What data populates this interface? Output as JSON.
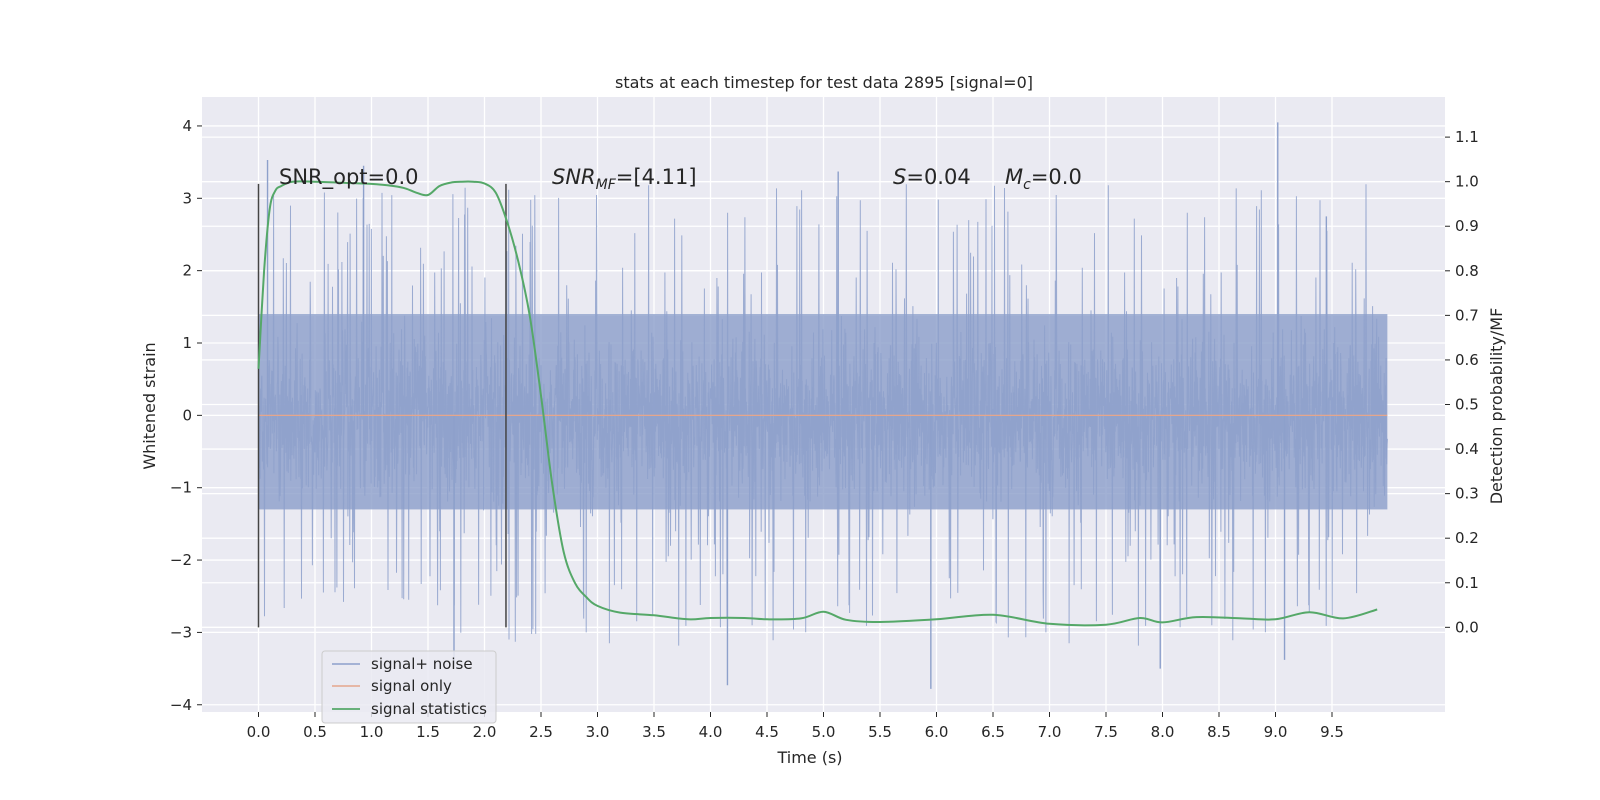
{
  "chart_data": {
    "type": "line",
    "title": "stats at each timestep for test data 2895 [signal=0]",
    "xlabel": "Time (s)",
    "ylabel": "Whitened strain",
    "y2label": "Detection probability/MF",
    "xlim": [
      -0.5,
      10.5
    ],
    "ylim": [
      -4.1,
      4.4
    ],
    "y2lim": [
      -0.19,
      1.19
    ],
    "x_ticks": [
      "0.0",
      "0.5",
      "1.0",
      "1.5",
      "2.0",
      "2.5",
      "3.0",
      "3.5",
      "4.0",
      "4.5",
      "5.0",
      "5.5",
      "6.0",
      "6.5",
      "7.0",
      "7.5",
      "8.0",
      "8.5",
      "9.0",
      "9.5"
    ],
    "y_ticks": [
      "4",
      "3",
      "2",
      "1",
      "0",
      "−1",
      "−2",
      "−3",
      "−4"
    ],
    "y_tick_values": [
      4,
      3,
      2,
      1,
      0,
      -1,
      -2,
      -3,
      -4
    ],
    "y2_ticks": [
      "1.1",
      "1.0",
      "0.9",
      "0.8",
      "0.7",
      "0.6",
      "0.5",
      "0.4",
      "0.3",
      "0.2",
      "0.1",
      "0.0"
    ],
    "y2_tick_values": [
      1.1,
      1.0,
      0.9,
      0.8,
      0.7,
      0.6,
      0.5,
      0.4,
      0.3,
      0.2,
      0.1,
      0.0
    ],
    "grid": true,
    "legend_position": "lower-left",
    "annotations": {
      "snr_opt": "SNR_opt=0.0",
      "snr_mf_prefix": "SNR",
      "snr_mf_sub": "MF",
      "snr_mf_value": "=[4.11]",
      "s_label": "S",
      "s_value": "=0.04",
      "mc_label": "M",
      "mc_sub": "c",
      "mc_value": "=0.0"
    },
    "vertical_lines_x": [
      0.0,
      2.19
    ],
    "series": [
      {
        "name": "signal+ noise",
        "color": "#8da0cb",
        "x_range": [
          0.0,
          9.99
        ],
        "envelope_upper": 1.4,
        "envelope_lower": -1.3,
        "spike_max": 4.05,
        "spike_min": -3.8,
        "notable_peaks": [
          {
            "x": 0.08,
            "y": 3.53
          },
          {
            "x": 0.93,
            "y": 3.45
          },
          {
            "x": 5.13,
            "y": 3.37
          },
          {
            "x": 9.02,
            "y": 4.05
          },
          {
            "x": 9.45,
            "y": 2.75
          }
        ],
        "notable_troughs": [
          {
            "x": 1.73,
            "y": -3.43
          },
          {
            "x": 4.15,
            "y": -3.73
          },
          {
            "x": 5.95,
            "y": -3.78
          },
          {
            "x": 7.98,
            "y": -3.5
          },
          {
            "x": 9.08,
            "y": -3.38
          }
        ]
      },
      {
        "name": "signal only",
        "color": "#e5a68c",
        "x": [
          0.0,
          9.99
        ],
        "y": [
          0.0,
          0.0
        ]
      },
      {
        "name": "signal statistics",
        "color": "#55a868",
        "axis": "right",
        "x": [
          0.0,
          0.05,
          0.1,
          0.15,
          0.2,
          0.3,
          0.5,
          0.8,
          1.0,
          1.2,
          1.3,
          1.4,
          1.5,
          1.6,
          1.7,
          1.8,
          1.9,
          2.0,
          2.1,
          2.2,
          2.3,
          2.4,
          2.5,
          2.6,
          2.7,
          2.8,
          2.9,
          3.0,
          3.2,
          3.5,
          3.8,
          4.0,
          4.3,
          4.5,
          4.8,
          5.0,
          5.2,
          5.5,
          6.0,
          6.5,
          7.0,
          7.5,
          7.8,
          8.0,
          8.3,
          8.7,
          9.0,
          9.3,
          9.6,
          9.9
        ],
        "y": [
          0.58,
          0.8,
          0.94,
          0.98,
          0.99,
          1.0,
          1.0,
          0.997,
          0.995,
          0.99,
          0.985,
          0.975,
          0.97,
          0.99,
          0.998,
          1.0,
          1.0,
          0.996,
          0.975,
          0.91,
          0.82,
          0.7,
          0.52,
          0.32,
          0.17,
          0.1,
          0.068,
          0.048,
          0.033,
          0.027,
          0.018,
          0.021,
          0.021,
          0.018,
          0.02,
          0.035,
          0.017,
          0.012,
          0.018,
          0.028,
          0.008,
          0.006,
          0.021,
          0.011,
          0.023,
          0.02,
          0.018,
          0.034,
          0.02,
          0.04
        ]
      }
    ]
  }
}
